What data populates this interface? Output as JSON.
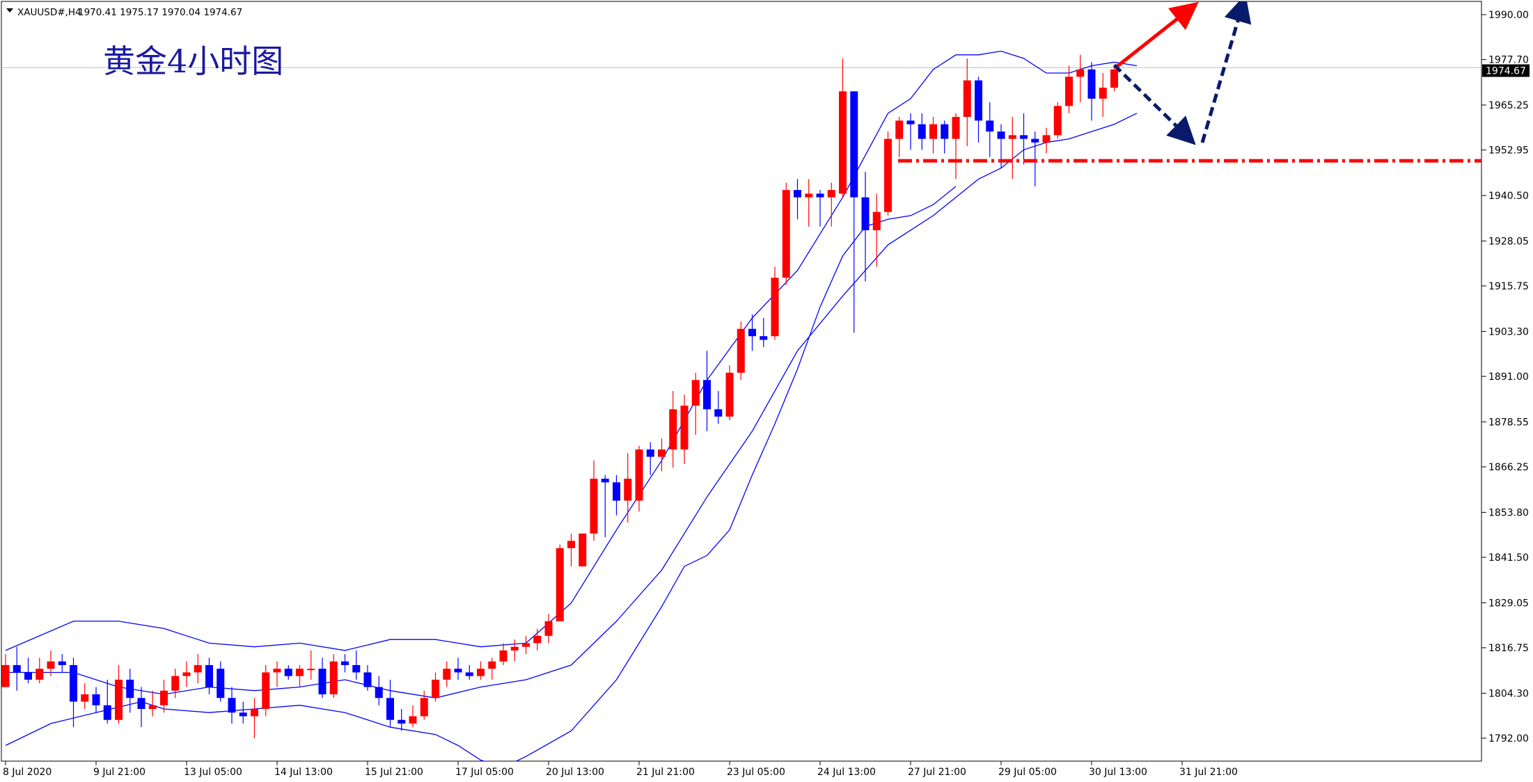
{
  "header": {
    "symbol_info": "XAUUSD#,H4",
    "ohlc_text": "1970.41 1975.17 1970.04 1974.67",
    "dropdown_icon": "triangle-down-icon"
  },
  "annotation_title": "黄金4小时图",
  "current_price_label": "1974.67",
  "colors": {
    "bull": "#ff0000",
    "bear": "#0000ff",
    "band": "#0000ff",
    "support_line": "#ff0000",
    "arrow_up": "#ff0000",
    "arrow_dashed": "#0a1a6b",
    "price_tag_bg": "#000000",
    "price_tag_text": "#ffffff",
    "grid_line": "#bcbcbc",
    "title": "#1a1aa0"
  },
  "chart_data": {
    "type": "candlestick",
    "symbol": "XAUUSD#",
    "timeframe": "H4",
    "ylim": [
      1786.5,
      1995.5
    ],
    "y_ticks": [
      "1990.00",
      "1977.70",
      "1965.25",
      "1952.95",
      "1940.50",
      "1928.05",
      "1915.75",
      "1903.30",
      "1891.00",
      "1878.55",
      "1866.25",
      "1853.80",
      "1841.50",
      "1829.05",
      "1816.75",
      "1804.30",
      "1792.00"
    ],
    "x_ticks": [
      "8 Jul 2020",
      "9 Jul 21:00",
      "13 Jul 05:00",
      "14 Jul 13:00",
      "15 Jul 21:00",
      "17 Jul 05:00",
      "20 Jul 13:00",
      "21 Jul 21:00",
      "23 Jul 05:00",
      "24 Jul 13:00",
      "27 Jul 21:00",
      "29 Jul 05:00",
      "30 Jul 13:00",
      "31 Jul 21:00"
    ],
    "x_tick_candle_index": [
      0,
      8,
      16,
      24,
      32,
      40,
      48,
      56,
      64,
      72,
      80,
      88,
      96,
      104
    ],
    "candles": [
      [
        1806,
        1815,
        1806,
        1812
      ],
      [
        1812,
        1817,
        1805,
        1810
      ],
      [
        1810,
        1814,
        1807,
        1808
      ],
      [
        1808,
        1814,
        1807,
        1811
      ],
      [
        1811,
        1816,
        1809,
        1813
      ],
      [
        1813,
        1815,
        1810,
        1812
      ],
      [
        1812,
        1814,
        1795,
        1802
      ],
      [
        1802,
        1807,
        1800,
        1804
      ],
      [
        1804,
        1806,
        1799,
        1801
      ],
      [
        1801,
        1808,
        1796,
        1797
      ],
      [
        1797,
        1812,
        1796,
        1808
      ],
      [
        1808,
        1811,
        1799,
        1803
      ],
      [
        1803,
        1806,
        1795,
        1800
      ],
      [
        1800,
        1805,
        1798,
        1801
      ],
      [
        1801,
        1808,
        1799,
        1805
      ],
      [
        1805,
        1811,
        1803,
        1809
      ],
      [
        1809,
        1813,
        1806,
        1810
      ],
      [
        1810,
        1815,
        1807,
        1812
      ],
      [
        1812,
        1814,
        1804,
        1806
      ],
      [
        1811,
        1813,
        1802,
        1803
      ],
      [
        1803,
        1806,
        1796,
        1799
      ],
      [
        1799,
        1802,
        1796,
        1798
      ],
      [
        1798,
        1803,
        1792,
        1800
      ],
      [
        1800,
        1812,
        1798,
        1810
      ],
      [
        1810,
        1813,
        1806,
        1811
      ],
      [
        1811,
        1812,
        1808,
        1809
      ],
      [
        1809,
        1812,
        1806,
        1811
      ],
      [
        1811,
        1816,
        1808,
        1811
      ],
      [
        1811,
        1814,
        1803,
        1804
      ],
      [
        1804,
        1815,
        1803,
        1813
      ],
      [
        1813,
        1815,
        1810,
        1812
      ],
      [
        1812,
        1816,
        1808,
        1810
      ],
      [
        1810,
        1812,
        1805,
        1806
      ],
      [
        1806,
        1809,
        1801,
        1803
      ],
      [
        1803,
        1808,
        1795,
        1797
      ],
      [
        1797,
        1800,
        1794,
        1796
      ],
      [
        1796,
        1801,
        1795,
        1798
      ],
      [
        1798,
        1805,
        1797,
        1803
      ],
      [
        1803,
        1810,
        1802,
        1808
      ],
      [
        1808,
        1813,
        1806,
        1811
      ],
      [
        1811,
        1814,
        1808,
        1810
      ],
      [
        1810,
        1812,
        1808,
        1809
      ],
      [
        1809,
        1813,
        1808,
        1811
      ],
      [
        1811,
        1814,
        1808,
        1813
      ],
      [
        1813,
        1818,
        1812,
        1816
      ],
      [
        1816,
        1819,
        1813,
        1817
      ],
      [
        1817,
        1820,
        1815,
        1818
      ],
      [
        1818,
        1822,
        1816,
        1820
      ],
      [
        1820,
        1826,
        1818,
        1824
      ],
      [
        1824,
        1845,
        1824,
        1844
      ],
      [
        1844,
        1848,
        1839,
        1846
      ],
      [
        1839,
        1848,
        1839,
        1848
      ],
      [
        1848,
        1868,
        1846,
        1863
      ],
      [
        1863,
        1864,
        1847,
        1862
      ],
      [
        1862,
        1864,
        1853,
        1857
      ],
      [
        1857,
        1870,
        1851,
        1863
      ],
      [
        1857,
        1872,
        1854,
        1871
      ],
      [
        1871,
        1873,
        1864,
        1869
      ],
      [
        1869,
        1874,
        1865,
        1871
      ],
      [
        1871,
        1887,
        1866,
        1882
      ],
      [
        1871,
        1886,
        1867,
        1883
      ],
      [
        1883,
        1892,
        1875,
        1890
      ],
      [
        1890,
        1898,
        1876,
        1882
      ],
      [
        1882,
        1887,
        1878,
        1880
      ],
      [
        1880,
        1894,
        1879,
        1892
      ],
      [
        1892,
        1906,
        1890,
        1904
      ],
      [
        1904,
        1908,
        1898,
        1902
      ],
      [
        1902,
        1907,
        1899,
        1901
      ],
      [
        1902,
        1921,
        1901,
        1918
      ],
      [
        1918,
        1944,
        1916,
        1942
      ],
      [
        1942,
        1945,
        1934,
        1940
      ],
      [
        1940,
        1945,
        1932,
        1941
      ],
      [
        1941,
        1942,
        1932,
        1940
      ],
      [
        1940,
        1944,
        1932,
        1942
      ],
      [
        1941,
        1978,
        1940,
        1969
      ],
      [
        1969,
        1969,
        1903,
        1940
      ],
      [
        1940,
        1947,
        1917,
        1931
      ],
      [
        1931,
        1941,
        1921,
        1936
      ],
      [
        1936,
        1958,
        1935,
        1956
      ],
      [
        1956,
        1962,
        1951,
        1961
      ],
      [
        1961,
        1963,
        1953,
        1960
      ],
      [
        1960,
        1963,
        1953,
        1956
      ],
      [
        1956,
        1962,
        1952,
        1960
      ],
      [
        1960,
        1961,
        1952,
        1956
      ],
      [
        1956,
        1963,
        1945,
        1962
      ],
      [
        1962,
        1978,
        1954,
        1972
      ],
      [
        1972,
        1973,
        1955,
        1961
      ],
      [
        1961,
        1966,
        1951,
        1958
      ],
      [
        1958,
        1960,
        1948,
        1956
      ],
      [
        1956,
        1962,
        1945,
        1957
      ],
      [
        1957,
        1963,
        1949,
        1956
      ],
      [
        1956,
        1958,
        1943,
        1955
      ],
      [
        1955,
        1959,
        1952,
        1957
      ],
      [
        1957,
        1966,
        1956,
        1965
      ],
      [
        1965,
        1976,
        1963,
        1973
      ],
      [
        1973,
        1979,
        1966,
        1975
      ],
      [
        1975,
        1977,
        1961,
        1967
      ],
      [
        1967,
        1974,
        1962,
        1970
      ],
      [
        1970,
        1976,
        1969,
        1975
      ]
    ],
    "bollinger": {
      "upper": [
        [
          0,
          1816
        ],
        [
          6,
          1824
        ],
        [
          10,
          1824
        ],
        [
          14,
          1822
        ],
        [
          18,
          1818
        ],
        [
          22,
          1817
        ],
        [
          26,
          1818
        ],
        [
          30,
          1816
        ],
        [
          34,
          1819
        ],
        [
          38,
          1819
        ],
        [
          42,
          1817
        ],
        [
          46,
          1818
        ],
        [
          50,
          1829
        ],
        [
          54,
          1849
        ],
        [
          58,
          1868
        ],
        [
          62,
          1890
        ],
        [
          66,
          1907
        ],
        [
          70,
          1920
        ],
        [
          74,
          1940
        ],
        [
          78,
          1963
        ],
        [
          80,
          1967
        ],
        [
          82,
          1975
        ],
        [
          84,
          1979
        ],
        [
          86,
          1979
        ],
        [
          88,
          1980
        ],
        [
          90,
          1978
        ],
        [
          92,
          1974
        ],
        [
          94,
          1974
        ],
        [
          96,
          1976
        ],
        [
          98,
          1977
        ],
        [
          100,
          1976
        ]
      ],
      "middle": [
        [
          0,
          1810
        ],
        [
          6,
          1810
        ],
        [
          10,
          1806
        ],
        [
          14,
          1804
        ],
        [
          18,
          1806
        ],
        [
          22,
          1805
        ],
        [
          26,
          1806
        ],
        [
          30,
          1808
        ],
        [
          34,
          1805
        ],
        [
          38,
          1803
        ],
        [
          42,
          1806
        ],
        [
          46,
          1808
        ],
        [
          50,
          1812
        ],
        [
          54,
          1824
        ],
        [
          58,
          1838
        ],
        [
          62,
          1858
        ],
        [
          66,
          1876
        ],
        [
          70,
          1898
        ],
        [
          74,
          1913
        ],
        [
          78,
          1927
        ],
        [
          82,
          1935
        ],
        [
          84,
          1940
        ],
        [
          86,
          1945
        ],
        [
          88,
          1948
        ],
        [
          90,
          1953
        ],
        [
          92,
          1955
        ],
        [
          94,
          1956
        ],
        [
          96,
          1958
        ],
        [
          98,
          1960
        ],
        [
          100,
          1963
        ]
      ],
      "lower": [
        [
          0,
          1790
        ],
        [
          4,
          1796
        ],
        [
          8,
          1799
        ],
        [
          12,
          1802
        ],
        [
          14,
          1800
        ],
        [
          18,
          1799
        ],
        [
          22,
          1800
        ],
        [
          26,
          1801
        ],
        [
          30,
          1799
        ],
        [
          34,
          1795
        ],
        [
          38,
          1793
        ],
        [
          40,
          1790
        ],
        [
          42,
          1786
        ],
        [
          44,
          1784
        ],
        [
          46,
          1787
        ],
        [
          50,
          1794
        ],
        [
          54,
          1808
        ],
        [
          58,
          1828
        ],
        [
          60,
          1839
        ],
        [
          62,
          1842
        ],
        [
          64,
          1849
        ],
        [
          66,
          1864
        ],
        [
          68,
          1878
        ],
        [
          70,
          1893
        ],
        [
          72,
          1910
        ],
        [
          74,
          1924
        ],
        [
          76,
          1932
        ],
        [
          78,
          1934
        ],
        [
          80,
          1935
        ],
        [
          82,
          1938
        ],
        [
          84,
          1943
        ]
      ]
    },
    "support_level": 1950.0,
    "current_price": 1974.67,
    "current_price_hline": 1975.5
  }
}
